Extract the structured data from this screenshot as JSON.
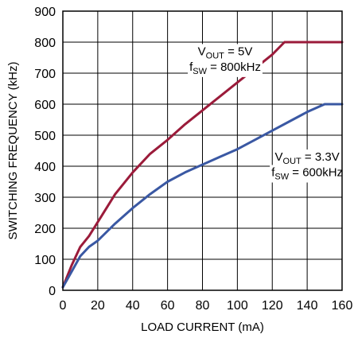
{
  "chart_data": {
    "type": "line",
    "title": "",
    "xlabel": "LOAD CURRENT (mA)",
    "ylabel": "SWITCHING FREQUENCY (kHz)",
    "xlim": [
      0,
      160
    ],
    "ylim": [
      0,
      900
    ],
    "xticks": [
      0,
      20,
      40,
      60,
      80,
      100,
      120,
      140,
      160
    ],
    "yticks": [
      0,
      100,
      200,
      300,
      400,
      500,
      600,
      700,
      800,
      900
    ],
    "grid": true,
    "legend": "none",
    "series": [
      {
        "color": "#9b1b3a",
        "annotation": {
          "line1_main": "V",
          "line1_sub": "OUT",
          "line1_rest": " = 5V",
          "line2_main": "f",
          "line2_sub": "SW",
          "line2_rest": " = 800kHz"
        },
        "x": [
          0,
          5,
          10,
          15,
          20,
          30,
          40,
          50,
          60,
          70,
          80,
          90,
          100,
          110,
          120,
          127,
          140,
          160
        ],
        "y": [
          10,
          80,
          140,
          175,
          220,
          310,
          380,
          440,
          485,
          535,
          580,
          625,
          670,
          715,
          760,
          800,
          800,
          800
        ]
      },
      {
        "color": "#3a58a3",
        "annotation": {
          "line1_main": "V",
          "line1_sub": "OUT",
          "line1_rest": " = 3.3V",
          "line2_main": "f",
          "line2_sub": "SW",
          "line2_rest": " = 600kHz"
        },
        "x": [
          0,
          5,
          10,
          15,
          20,
          30,
          40,
          50,
          60,
          70,
          80,
          90,
          100,
          110,
          120,
          130,
          140,
          150,
          160
        ],
        "y": [
          10,
          60,
          110,
          140,
          160,
          215,
          265,
          310,
          350,
          380,
          405,
          430,
          455,
          485,
          515,
          545,
          575,
          600,
          600
        ]
      }
    ]
  }
}
